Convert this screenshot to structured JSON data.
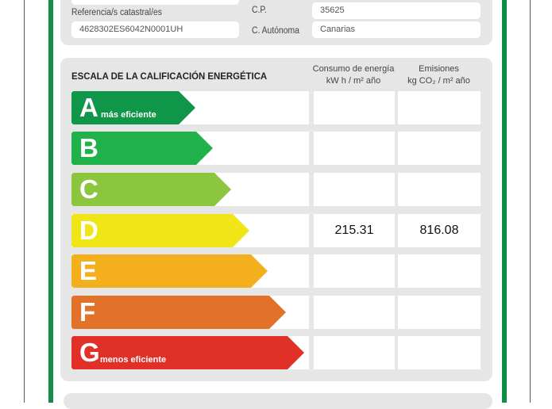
{
  "location": {
    "cadastral_label": "Referencia/s catastral/es",
    "cadastral_value": "4628302ES6042N0001UH",
    "postal_label": "C.P.",
    "postal_value": "35625",
    "region_label": "C. Autónoma",
    "region_value": "Canarias"
  },
  "scale": {
    "title": "ESCALA DE LA CALIFICACIÓN ENERGÉTICA",
    "col_energy": "Consumo de energía",
    "col_energy_unit": "kW h  / m² año",
    "col_emissions": "Emisiones",
    "col_emissions_unit": "kg CO₂ / m² año",
    "rows": [
      {
        "letter": "A",
        "note": "más eficiente",
        "color": "#0f9648",
        "energy": "",
        "emissions": ""
      },
      {
        "letter": "B",
        "note": "",
        "color": "#20b14b",
        "energy": "",
        "emissions": ""
      },
      {
        "letter": "C",
        "note": "",
        "color": "#8cc63f",
        "energy": "",
        "emissions": ""
      },
      {
        "letter": "D",
        "note": "",
        "color": "#f0e617",
        "energy": "215.31",
        "emissions": "816.08"
      },
      {
        "letter": "E",
        "note": "",
        "color": "#f4b01c",
        "energy": "",
        "emissions": ""
      },
      {
        "letter": "F",
        "note": "",
        "color": "#e2712a",
        "energy": "",
        "emissions": ""
      },
      {
        "letter": "G",
        "note": "menos eficiente",
        "color": "#e03027",
        "energy": "",
        "emissions": ""
      }
    ]
  }
}
